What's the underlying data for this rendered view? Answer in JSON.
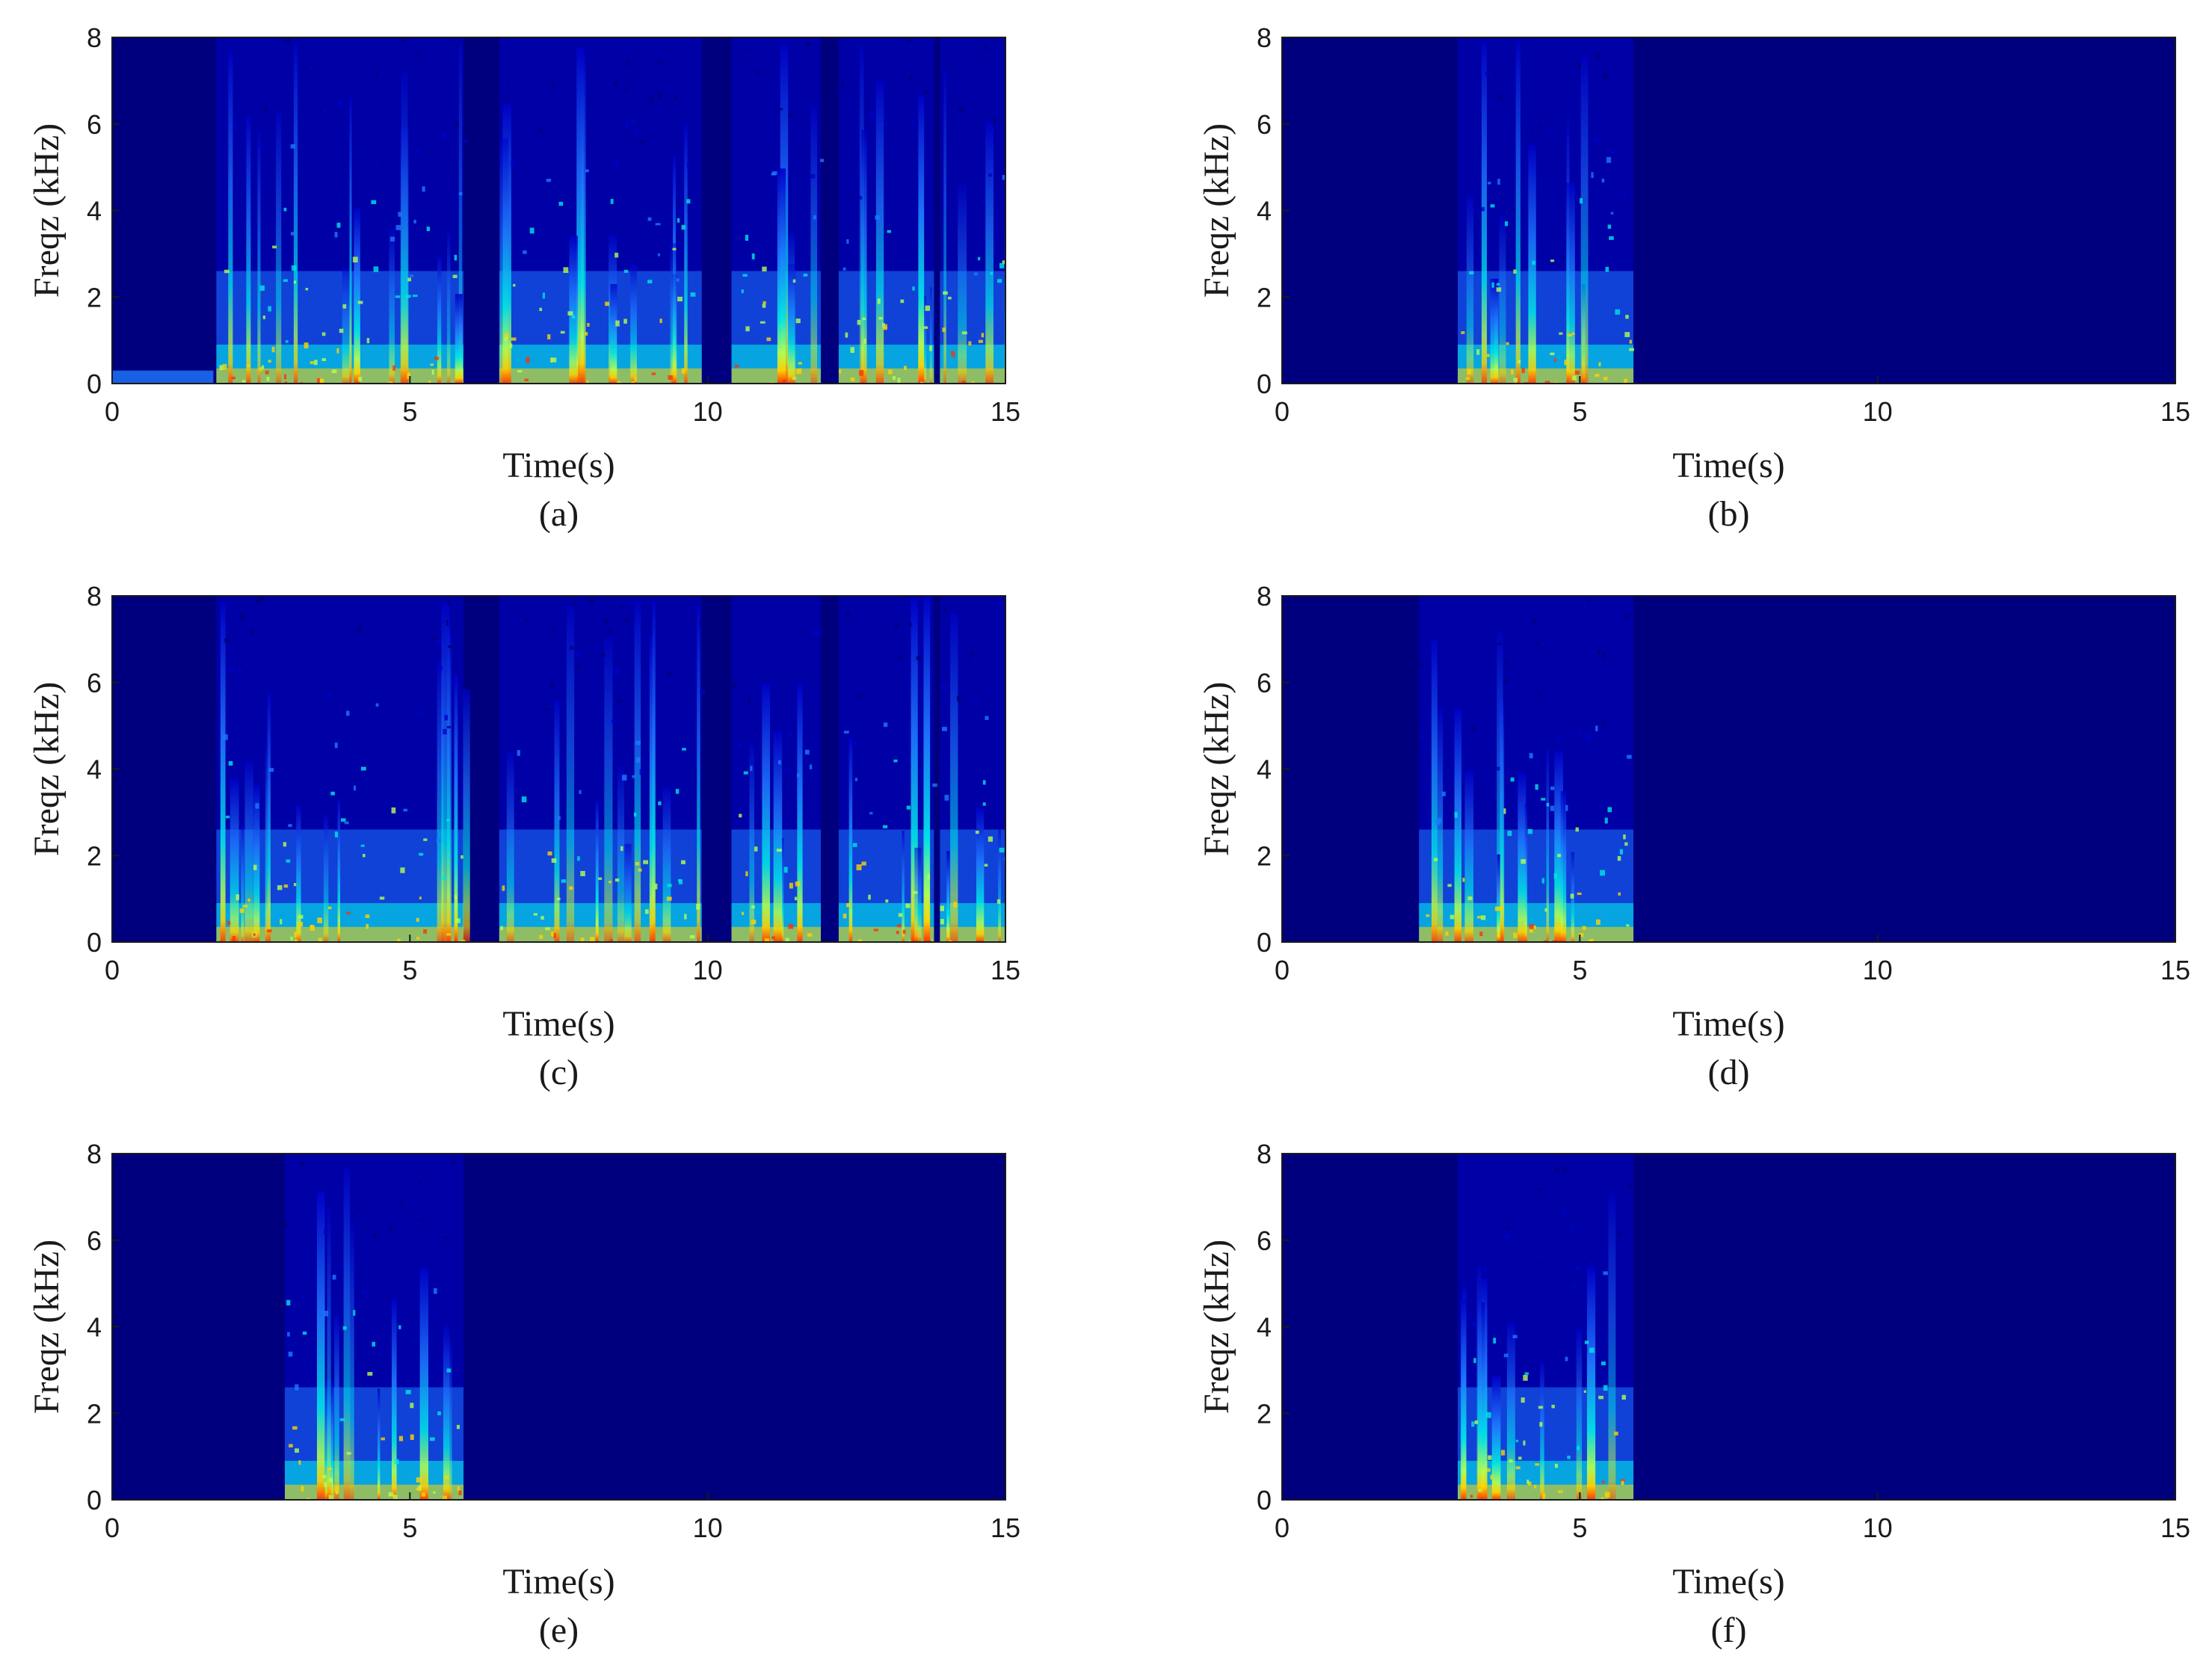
{
  "colors": {
    "background": "#00007f",
    "low": "#0000c8",
    "mid_low": "#1e78ff",
    "mid": "#00e6e6",
    "mid_high": "#b4ff50",
    "high": "#ffd200",
    "peak": "#ff3200",
    "top": "#c80000"
  },
  "chart_data": [
    {
      "type": "heatmap",
      "caption": "(a)",
      "xlabel": "Time(s)",
      "ylabel": "Freqz (kHz)",
      "xlim": [
        0,
        15
      ],
      "ylim": [
        0,
        8
      ],
      "xticks": [
        "0",
        "5",
        "10",
        "15"
      ],
      "yticks": [
        "0",
        "2",
        "4",
        "6",
        "8"
      ],
      "speech_segments_s": [
        [
          1.75,
          5.9
        ],
        [
          6.5,
          9.9
        ],
        [
          10.4,
          11.9
        ],
        [
          12.2,
          13.8
        ],
        [
          13.9,
          15.0
        ]
      ],
      "background_hum_s": [
        [
          0.0,
          1.7
        ]
      ]
    },
    {
      "type": "heatmap",
      "caption": "(b)",
      "xlabel": "Time(s)",
      "ylabel": "Freqz (kHz)",
      "xlim": [
        0,
        15
      ],
      "ylim": [
        0,
        8
      ],
      "xticks": [
        "0",
        "5",
        "10",
        "15"
      ],
      "yticks": [
        "0",
        "2",
        "4",
        "6",
        "8"
      ],
      "speech_segments_s": [
        [
          2.95,
          5.9
        ]
      ]
    },
    {
      "type": "heatmap",
      "caption": "(c)",
      "xlabel": "Time(s)",
      "ylabel": "Freqz (kHz)",
      "xlim": [
        0,
        15
      ],
      "ylim": [
        0,
        8
      ],
      "xticks": [
        "0",
        "5",
        "10",
        "15"
      ],
      "yticks": [
        "0",
        "2",
        "4",
        "6",
        "8"
      ],
      "speech_segments_s": [
        [
          1.75,
          5.9
        ],
        [
          6.5,
          9.9
        ],
        [
          10.4,
          11.9
        ],
        [
          12.2,
          13.8
        ],
        [
          13.9,
          15.0
        ]
      ]
    },
    {
      "type": "heatmap",
      "caption": "(d)",
      "xlabel": "Time(s)",
      "ylabel": "Freqz (kHz)",
      "xlim": [
        0,
        15
      ],
      "ylim": [
        0,
        8
      ],
      "xticks": [
        "0",
        "5",
        "10",
        "15"
      ],
      "yticks": [
        "0",
        "2",
        "4",
        "6",
        "8"
      ],
      "speech_segments_s": [
        [
          2.3,
          5.9
        ]
      ]
    },
    {
      "type": "heatmap",
      "caption": "(e)",
      "xlabel": "Time(s)",
      "ylabel": "Freqz (kHz)",
      "xlim": [
        0,
        15
      ],
      "ylim": [
        0,
        8
      ],
      "xticks": [
        "0",
        "5",
        "10",
        "15"
      ],
      "yticks": [
        "0",
        "2",
        "4",
        "6",
        "8"
      ],
      "speech_segments_s": [
        [
          2.9,
          5.9
        ]
      ]
    },
    {
      "type": "heatmap",
      "caption": "(f)",
      "xlabel": "Time(s)",
      "ylabel": "Freqz (kHz)",
      "xlim": [
        0,
        15
      ],
      "ylim": [
        0,
        8
      ],
      "xticks": [
        "0",
        "5",
        "10",
        "15"
      ],
      "yticks": [
        "0",
        "2",
        "4",
        "6",
        "8"
      ],
      "speech_segments_s": [
        [
          2.95,
          5.9
        ]
      ]
    }
  ]
}
